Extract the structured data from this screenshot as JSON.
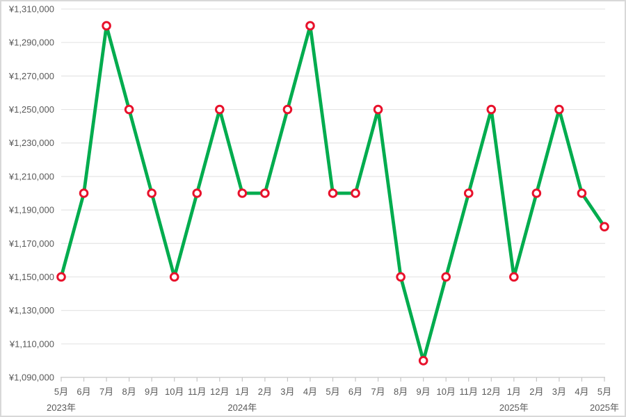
{
  "chart_data": {
    "type": "line",
    "title": "",
    "xlabel": "",
    "ylabel": "",
    "grid": true,
    "legend": "none",
    "categories": [
      "5月",
      "6月",
      "7月",
      "8月",
      "9月",
      "10月",
      "11月",
      "12月",
      "1月",
      "2月",
      "3月",
      "4月",
      "5月",
      "6月",
      "7月",
      "8月",
      "9月",
      "10月",
      "11月",
      "12月",
      "1月",
      "2月",
      "3月",
      "4月",
      "5月"
    ],
    "values": [
      1150000,
      1200000,
      1300000,
      1250000,
      1200000,
      1150000,
      1200000,
      1250000,
      1200000,
      1200000,
      1250000,
      1300000,
      1200000,
      1200000,
      1250000,
      1150000,
      1100000,
      1150000,
      1200000,
      1250000,
      1150000,
      1200000,
      1250000,
      1200000,
      1180000
    ],
    "year_labels": [
      {
        "label": "2023年",
        "month_index": 0
      },
      {
        "label": "2024年",
        "month_index": 8
      },
      {
        "label": "2025年",
        "month_index": 20
      },
      {
        "label": "2025年",
        "month_index": 24
      }
    ],
    "y_tick_labels": [
      "¥1,310,000",
      "¥1,290,000",
      "¥1,270,000",
      "¥1,250,000",
      "¥1,230,000",
      "¥1,210,000",
      "¥1,190,000",
      "¥1,170,000",
      "¥1,150,000",
      "¥1,130,000",
      "¥1,110,000",
      "¥1,090,000"
    ],
    "y_tick_values": [
      1310000,
      1290000,
      1270000,
      1250000,
      1230000,
      1210000,
      1190000,
      1170000,
      1150000,
      1130000,
      1110000,
      1090000
    ],
    "ylim": [
      1090000,
      1310000
    ],
    "colors": {
      "line": "#00AC4E",
      "marker_stroke": "#E8112B",
      "marker_fill": "#FFFFFF",
      "gridline": "#E5E5E5",
      "axis": "#C6C6C6",
      "text": "#595959",
      "background": "#FFFFFF",
      "border": "#D8D8D8"
    }
  }
}
